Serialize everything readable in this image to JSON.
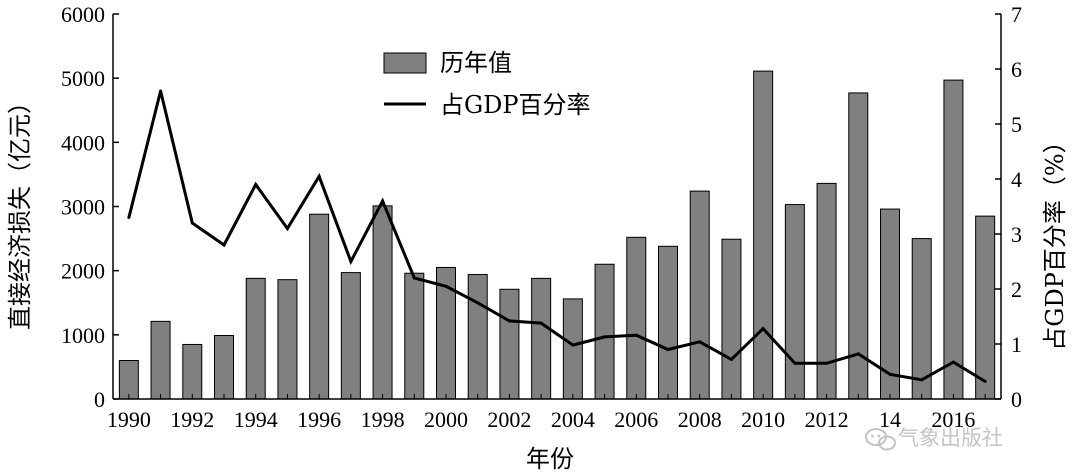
{
  "chart_data": {
    "type": "bar",
    "categories": [
      "1990",
      "1991",
      "1992",
      "1993",
      "1994",
      "1995",
      "1996",
      "1997",
      "1998",
      "1999",
      "2000",
      "2001",
      "2002",
      "2003",
      "2004",
      "2005",
      "2006",
      "2007",
      "2008",
      "2009",
      "2010",
      "2011",
      "2012",
      "2013",
      "2014",
      "2015",
      "2016",
      "2017"
    ],
    "x_tick_labels": [
      "1990",
      "1992",
      "1994",
      "1996",
      "1998",
      "2000",
      "2002",
      "2004",
      "2006",
      "2008",
      "2010",
      "2012",
      "14",
      "2016"
    ],
    "series": [
      {
        "name": "历年值",
        "type": "bar",
        "axis": "left",
        "color": "#808080",
        "values": [
          600,
          1210,
          850,
          990,
          1880,
          1860,
          2880,
          1970,
          3010,
          1960,
          2050,
          1940,
          1710,
          1880,
          1560,
          2100,
          2520,
          2380,
          3240,
          2490,
          5110,
          3030,
          3360,
          4770,
          2960,
          2500,
          4970,
          2850
        ]
      },
      {
        "name": "占GDP百分率",
        "type": "line",
        "axis": "right",
        "color": "#000000",
        "values": [
          3.3,
          5.6,
          3.2,
          2.8,
          3.9,
          3.1,
          4.05,
          2.5,
          3.6,
          2.2,
          2.05,
          1.75,
          1.42,
          1.38,
          0.98,
          1.13,
          1.16,
          0.9,
          1.04,
          0.72,
          1.28,
          0.65,
          0.65,
          0.82,
          0.45,
          0.35,
          0.67,
          0.32
        ]
      }
    ],
    "xlabel": "年份",
    "ylabel": "直接经济损失（亿元）",
    "y2label": "占GDP百分率（%）",
    "ylim": [
      0,
      6000
    ],
    "y2lim": [
      0,
      7
    ],
    "yticks": [
      0,
      1000,
      2000,
      3000,
      4000,
      5000,
      6000
    ],
    "y2ticks": [
      0,
      1,
      2,
      3,
      4,
      5,
      6,
      7
    ],
    "grid": false,
    "legend_position": "top-center"
  },
  "watermark": {
    "icon": "wechat-icon",
    "text": "气象出版社"
  }
}
